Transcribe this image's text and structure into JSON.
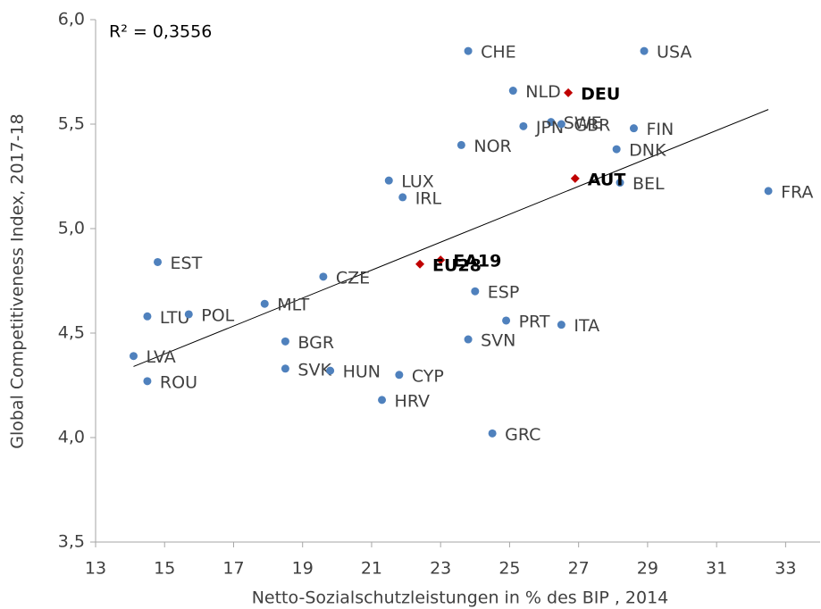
{
  "chart_data": {
    "type": "scatter",
    "x_label": "Netto-Sozialschutzleistungen in % des BIP , 2014",
    "y_label": "Global Competitiveness Index, 2017-18",
    "annotation": "R² = 0,3556",
    "xlim": [
      13,
      34
    ],
    "xticks": [
      13,
      15,
      17,
      19,
      21,
      23,
      25,
      27,
      29,
      31,
      33
    ],
    "ylim": [
      3.5,
      6.0
    ],
    "yticks": [
      {
        "value": 3.5,
        "label": "3,5"
      },
      {
        "value": 4.0,
        "label": "4,0"
      },
      {
        "value": 4.5,
        "label": "4,5"
      },
      {
        "value": 5.0,
        "label": "5,0"
      },
      {
        "value": 5.5,
        "label": "5,5"
      },
      {
        "value": 6.0,
        "label": "6,0"
      }
    ],
    "series": [
      {
        "color": "#4f81bd",
        "marker": "circle",
        "bold": false,
        "labels": [
          "CHE",
          "USA",
          "NLD",
          "SWE",
          "JPN",
          "GBR",
          "FIN",
          "NOR",
          "DNK",
          "BEL",
          "FRA",
          "LUX",
          "IRL",
          "EST",
          "CZE",
          "ESP",
          "MLT",
          "LTU",
          "POL",
          "PRT",
          "ITA",
          "BGR",
          "SVN",
          "LVA",
          "SVK",
          "HUN",
          "CYP",
          "ROU",
          "HRV",
          "GRC"
        ],
        "x": [
          23.8,
          28.9,
          25.1,
          26.2,
          25.4,
          26.5,
          28.6,
          23.6,
          28.1,
          28.2,
          32.5,
          21.5,
          21.9,
          14.8,
          19.6,
          24.0,
          17.9,
          14.5,
          15.7,
          24.9,
          26.5,
          18.5,
          23.8,
          14.1,
          18.5,
          19.8,
          21.8,
          14.5,
          21.3,
          24.5
        ],
        "values": [
          5.85,
          5.85,
          5.66,
          5.51,
          5.49,
          5.5,
          5.48,
          5.4,
          5.38,
          5.22,
          5.18,
          5.23,
          5.15,
          4.84,
          4.77,
          4.7,
          4.64,
          4.58,
          4.59,
          4.56,
          4.54,
          4.46,
          4.47,
          4.39,
          4.33,
          4.32,
          4.3,
          4.27,
          4.18,
          4.02
        ]
      },
      {
        "color": "#c00000",
        "marker": "diamond",
        "bold": true,
        "labels": [
          "DEU",
          "AUT",
          "EA19",
          "EU28"
        ],
        "x": [
          26.7,
          26.9,
          23.0,
          22.4
        ],
        "values": [
          5.65,
          5.24,
          4.85,
          4.83
        ]
      }
    ],
    "trendline": {
      "x": [
        14.1,
        32.5
      ],
      "values": [
        4.34,
        5.57
      ],
      "color": "#000000"
    }
  }
}
